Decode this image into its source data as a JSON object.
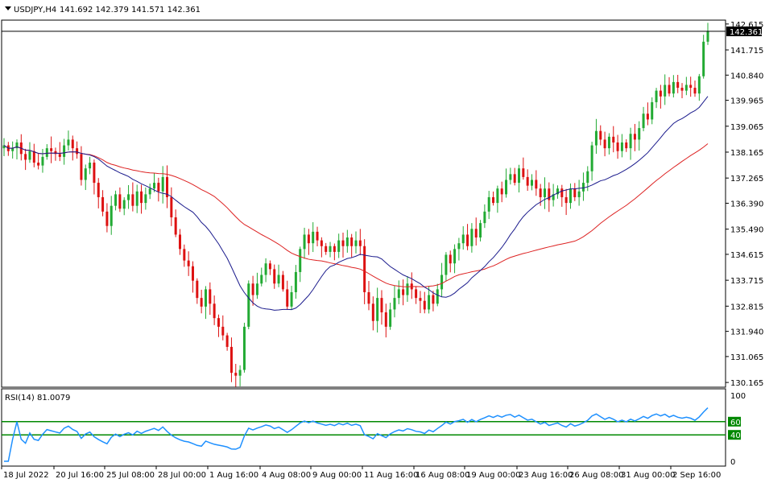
{
  "header": {
    "symbol": "USDJPY,H4",
    "ohlc": "141.692 142.379 141.571 142.361",
    "toggle_icon": "triangle-down-icon"
  },
  "price_badge": "142.361",
  "rsi_label": "RSI(14) 81.0079",
  "colors": {
    "bull": "#22aa33",
    "bear": "#dd1111",
    "ma_fast": "#1a1a8c",
    "ma_slow": "#dd2222",
    "rsi": "#1e90ff",
    "rsi_levels": "#008800"
  },
  "chart_data": [
    {
      "type": "candlestick",
      "symbol": "USDJPY",
      "timeframe": "H4",
      "y_ticks": [
        "142.615",
        "141.715",
        "140.840",
        "139.965",
        "139.065",
        "138.165",
        "137.265",
        "136.390",
        "135.490",
        "134.615",
        "133.715",
        "132.815",
        "131.940",
        "131.065",
        "130.165"
      ],
      "ylim": [
        130.0,
        142.75
      ],
      "x_ticks": [
        "18 Jul 2022",
        "20 Jul 16:00",
        "25 Jul 08:00",
        "28 Jul 00:00",
        "1 Aug 16:00",
        "4 Aug 08:00",
        "9 Aug 00:00",
        "11 Aug 16:00",
        "16 Aug 08:00",
        "19 Aug 00:00",
        "23 Aug 16:00",
        "26 Aug 08:00",
        "31 Aug 00:00",
        "2 Sep 16:00"
      ],
      "last_price": 142.361,
      "close": [
        138.4,
        138.2,
        138.3,
        138.5,
        138.1,
        137.9,
        138.2,
        137.8,
        137.7,
        138.0,
        138.3,
        138.2,
        138.1,
        138.0,
        138.4,
        138.6,
        138.3,
        138.1,
        137.2,
        137.6,
        137.8,
        137.1,
        136.6,
        136.1,
        135.6,
        136.3,
        136.7,
        136.2,
        136.5,
        136.7,
        136.3,
        136.8,
        136.4,
        136.7,
        136.9,
        137.1,
        136.8,
        137.3,
        136.6,
        135.9,
        135.3,
        134.8,
        134.4,
        134.2,
        133.7,
        133.1,
        132.8,
        133.4,
        132.9,
        132.4,
        132.1,
        131.8,
        131.4,
        130.5,
        130.4,
        130.6,
        132.1,
        133.6,
        133.2,
        133.6,
        133.9,
        134.3,
        134.1,
        133.6,
        133.9,
        133.4,
        132.8,
        133.3,
        134.0,
        134.8,
        135.3,
        135.0,
        135.4,
        135.1,
        134.9,
        134.7,
        134.9,
        134.7,
        135.1,
        134.9,
        135.2,
        134.9,
        135.1,
        134.9,
        133.3,
        132.9,
        132.3,
        133.1,
        132.6,
        132.1,
        132.7,
        133.1,
        133.4,
        133.2,
        133.6,
        133.4,
        133.1,
        133.0,
        132.7,
        133.2,
        132.9,
        133.4,
        133.9,
        134.6,
        134.3,
        134.8,
        135.0,
        135.3,
        134.9,
        135.5,
        135.2,
        135.7,
        136.1,
        136.6,
        136.4,
        136.9,
        136.7,
        137.2,
        137.4,
        137.1,
        137.6,
        137.3,
        137.0,
        137.2,
        136.9,
        136.6,
        136.9,
        136.5,
        136.7,
        136.9,
        136.6,
        136.4,
        136.9,
        136.6,
        136.8,
        137.1,
        137.5,
        138.4,
        138.9,
        138.6,
        138.3,
        138.7,
        138.5,
        138.2,
        138.5,
        138.3,
        138.8,
        138.6,
        139.0,
        139.5,
        139.3,
        139.9,
        140.3,
        140.1,
        140.5,
        140.2,
        140.6,
        140.4,
        140.3,
        140.5,
        140.4,
        140.2,
        140.8,
        142.0,
        142.36
      ],
      "series": [
        {
          "name": "MA fast",
          "color": "#1a1a8c"
        },
        {
          "name": "MA slow",
          "color": "#dd2222"
        }
      ]
    },
    {
      "type": "line",
      "name": "RSI(14)",
      "value": 81.0079,
      "y_ticks": [
        "100",
        "60",
        "40",
        "0"
      ],
      "levels": [
        60,
        40
      ],
      "ylim": [
        0,
        100
      ]
    }
  ]
}
